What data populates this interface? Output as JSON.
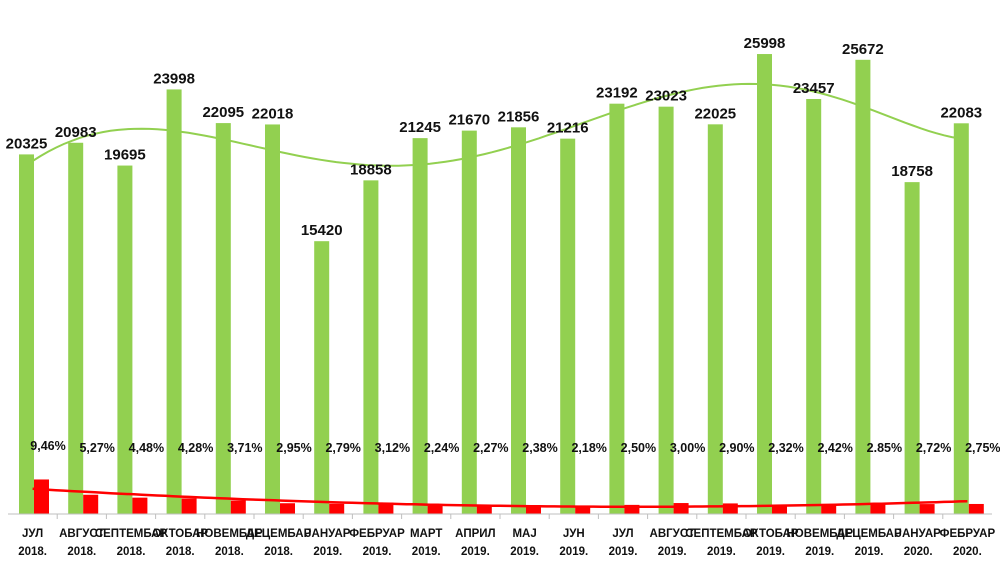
{
  "chart_data": {
    "type": "bar",
    "title": "",
    "xlabel": "",
    "ylabel": "",
    "grid": false,
    "legend": "none",
    "categories": [
      {
        "month": "ЈУЛ",
        "year": "2018."
      },
      {
        "month": "АВГУСТ",
        "year": "2018."
      },
      {
        "month": "СЕПТЕМБАР",
        "year": "2018."
      },
      {
        "month": "ОКТОБАР",
        "year": "2018."
      },
      {
        "month": "НОВЕМБАР",
        "year": "2018."
      },
      {
        "month": "ДЕЦЕМБАР",
        "year": "2018."
      },
      {
        "month": "ЈАНУАР",
        "year": "2019."
      },
      {
        "month": "ФЕБРУАР",
        "year": "2019."
      },
      {
        "month": "МАРТ",
        "year": "2019."
      },
      {
        "month": "АПРИЛ",
        "year": "2019."
      },
      {
        "month": "МАЈ",
        "year": "2019."
      },
      {
        "month": "ЈУН",
        "year": "2019."
      },
      {
        "month": "ЈУЛ",
        "year": "2019."
      },
      {
        "month": "АВГУСТ",
        "year": "2019."
      },
      {
        "month": "СЕПТЕМБАР",
        "year": "2019."
      },
      {
        "month": "ОКТОБАР",
        "year": "2019."
      },
      {
        "month": "НОВЕМБАР",
        "year": "2019."
      },
      {
        "month": "ДЕЦЕМБАР",
        "year": "2019."
      },
      {
        "month": "ЈАНУАР",
        "year": "2020."
      },
      {
        "month": "ФЕБРУАР",
        "year": "2020."
      }
    ],
    "series": [
      {
        "color": "#92d050",
        "values": [
          20325,
          20983,
          19695,
          23998,
          22095,
          22018,
          15420,
          18858,
          21245,
          21670,
          21856,
          21216,
          23192,
          23023,
          22025,
          25998,
          23457,
          25672,
          18758,
          22083
        ],
        "labels": [
          "20325",
          "20983",
          "19695",
          "23998",
          "22095",
          "22018",
          "15420",
          "18858",
          "21245",
          "21670",
          "21856",
          "21216",
          "23192",
          "23023",
          "22025",
          "25998",
          "23457",
          "25672",
          "18758",
          "22083"
        ],
        "trendline": {
          "type": "polynomial",
          "color": "#92d050"
        }
      },
      {
        "color": "#ff0000",
        "values": [
          9.46,
          5.27,
          4.48,
          4.28,
          3.71,
          2.95,
          2.79,
          3.12,
          2.24,
          2.27,
          2.38,
          2.18,
          2.5,
          3.0,
          2.9,
          2.32,
          2.42,
          2.85,
          2.72,
          2.75
        ],
        "labels": [
          "9,46%",
          "5,27%",
          "4,48%",
          "4,28%",
          "3,71%",
          "2,95%",
          "2,79%",
          "3,12%",
          "2,24%",
          "2,27%",
          "2,38%",
          "2,18%",
          "2,50%",
          "3,00%",
          "2,90%",
          "2,32%",
          "2,42%",
          "2.85%",
          "2,72%",
          "2,75%"
        ],
        "trendline": {
          "type": "polynomial",
          "color": "#ff0000"
        }
      }
    ]
  }
}
